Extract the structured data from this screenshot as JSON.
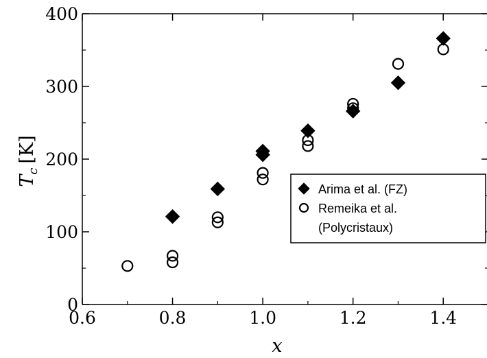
{
  "chart_data": {
    "type": "scatter",
    "title": "",
    "xlabel": "x",
    "ylabel_main": "T",
    "ylabel_sub": "c",
    "ylabel_unit": "[K]",
    "xlim": [
      0.6,
      1.5
    ],
    "ylim": [
      0,
      400
    ],
    "x_ticks": [
      0.6,
      0.8,
      1.0,
      1.2,
      1.4
    ],
    "x_tick_labels": [
      "0.6",
      "0.8",
      "1.0",
      "1.2",
      "1.4"
    ],
    "y_ticks": [
      0,
      100,
      200,
      300,
      400
    ],
    "y_tick_labels": [
      "0",
      "100",
      "200",
      "300",
      "400"
    ],
    "grid": false,
    "legend_position": "right-center",
    "series": [
      {
        "name": "Arima et al. (FZ)",
        "marker": "filled-diamond",
        "color": "#000000",
        "points": [
          {
            "x": 0.8,
            "y": 121
          },
          {
            "x": 0.9,
            "y": 159
          },
          {
            "x": 1.0,
            "y": 206
          },
          {
            "x": 1.0,
            "y": 211
          },
          {
            "x": 1.1,
            "y": 239
          },
          {
            "x": 1.2,
            "y": 266
          },
          {
            "x": 1.3,
            "y": 305
          },
          {
            "x": 1.4,
            "y": 366
          }
        ]
      },
      {
        "name": "Remeika et al. (Polycristaux)",
        "legend_lines": [
          "Remeika et al.",
          "(Polycristaux)"
        ],
        "marker": "open-circle",
        "color": "#000000",
        "points": [
          {
            "x": 0.7,
            "y": 53
          },
          {
            "x": 0.8,
            "y": 58
          },
          {
            "x": 0.8,
            "y": 67
          },
          {
            "x": 0.9,
            "y": 113
          },
          {
            "x": 0.9,
            "y": 120
          },
          {
            "x": 1.0,
            "y": 172
          },
          {
            "x": 1.0,
            "y": 181
          },
          {
            "x": 1.1,
            "y": 218
          },
          {
            "x": 1.1,
            "y": 226
          },
          {
            "x": 1.2,
            "y": 270
          },
          {
            "x": 1.2,
            "y": 276
          },
          {
            "x": 1.3,
            "y": 331
          },
          {
            "x": 1.4,
            "y": 351
          }
        ]
      }
    ]
  }
}
